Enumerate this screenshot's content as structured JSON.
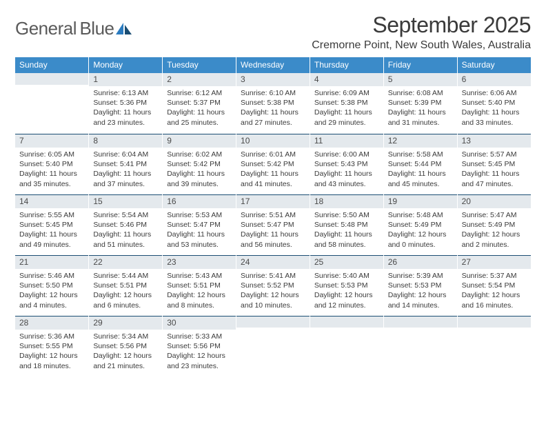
{
  "logo": {
    "text1": "General",
    "text2": "Blue"
  },
  "header": {
    "month_title": "September 2025",
    "location": "Cremorne Point, New South Wales, Australia"
  },
  "colors": {
    "header_bg": "#3b8bc9",
    "header_text": "#ffffff",
    "daybar_bg": "#e4e9ed",
    "daybar_border": "#1a4d73",
    "body_text": "#3a3a3a",
    "logo_gray": "#5a5a5a",
    "logo_blue": "#2b7bbf"
  },
  "day_headers": [
    "Sunday",
    "Monday",
    "Tuesday",
    "Wednesday",
    "Thursday",
    "Friday",
    "Saturday"
  ],
  "weeks": [
    [
      {
        "n": "",
        "lines": []
      },
      {
        "n": "1",
        "lines": [
          "Sunrise: 6:13 AM",
          "Sunset: 5:36 PM",
          "Daylight: 11 hours and 23 minutes."
        ]
      },
      {
        "n": "2",
        "lines": [
          "Sunrise: 6:12 AM",
          "Sunset: 5:37 PM",
          "Daylight: 11 hours and 25 minutes."
        ]
      },
      {
        "n": "3",
        "lines": [
          "Sunrise: 6:10 AM",
          "Sunset: 5:38 PM",
          "Daylight: 11 hours and 27 minutes."
        ]
      },
      {
        "n": "4",
        "lines": [
          "Sunrise: 6:09 AM",
          "Sunset: 5:38 PM",
          "Daylight: 11 hours and 29 minutes."
        ]
      },
      {
        "n": "5",
        "lines": [
          "Sunrise: 6:08 AM",
          "Sunset: 5:39 PM",
          "Daylight: 11 hours and 31 minutes."
        ]
      },
      {
        "n": "6",
        "lines": [
          "Sunrise: 6:06 AM",
          "Sunset: 5:40 PM",
          "Daylight: 11 hours and 33 minutes."
        ]
      }
    ],
    [
      {
        "n": "7",
        "lines": [
          "Sunrise: 6:05 AM",
          "Sunset: 5:40 PM",
          "Daylight: 11 hours and 35 minutes."
        ]
      },
      {
        "n": "8",
        "lines": [
          "Sunrise: 6:04 AM",
          "Sunset: 5:41 PM",
          "Daylight: 11 hours and 37 minutes."
        ]
      },
      {
        "n": "9",
        "lines": [
          "Sunrise: 6:02 AM",
          "Sunset: 5:42 PM",
          "Daylight: 11 hours and 39 minutes."
        ]
      },
      {
        "n": "10",
        "lines": [
          "Sunrise: 6:01 AM",
          "Sunset: 5:42 PM",
          "Daylight: 11 hours and 41 minutes."
        ]
      },
      {
        "n": "11",
        "lines": [
          "Sunrise: 6:00 AM",
          "Sunset: 5:43 PM",
          "Daylight: 11 hours and 43 minutes."
        ]
      },
      {
        "n": "12",
        "lines": [
          "Sunrise: 5:58 AM",
          "Sunset: 5:44 PM",
          "Daylight: 11 hours and 45 minutes."
        ]
      },
      {
        "n": "13",
        "lines": [
          "Sunrise: 5:57 AM",
          "Sunset: 5:45 PM",
          "Daylight: 11 hours and 47 minutes."
        ]
      }
    ],
    [
      {
        "n": "14",
        "lines": [
          "Sunrise: 5:55 AM",
          "Sunset: 5:45 PM",
          "Daylight: 11 hours and 49 minutes."
        ]
      },
      {
        "n": "15",
        "lines": [
          "Sunrise: 5:54 AM",
          "Sunset: 5:46 PM",
          "Daylight: 11 hours and 51 minutes."
        ]
      },
      {
        "n": "16",
        "lines": [
          "Sunrise: 5:53 AM",
          "Sunset: 5:47 PM",
          "Daylight: 11 hours and 53 minutes."
        ]
      },
      {
        "n": "17",
        "lines": [
          "Sunrise: 5:51 AM",
          "Sunset: 5:47 PM",
          "Daylight: 11 hours and 56 minutes."
        ]
      },
      {
        "n": "18",
        "lines": [
          "Sunrise: 5:50 AM",
          "Sunset: 5:48 PM",
          "Daylight: 11 hours and 58 minutes."
        ]
      },
      {
        "n": "19",
        "lines": [
          "Sunrise: 5:48 AM",
          "Sunset: 5:49 PM",
          "Daylight: 12 hours and 0 minutes."
        ]
      },
      {
        "n": "20",
        "lines": [
          "Sunrise: 5:47 AM",
          "Sunset: 5:49 PM",
          "Daylight: 12 hours and 2 minutes."
        ]
      }
    ],
    [
      {
        "n": "21",
        "lines": [
          "Sunrise: 5:46 AM",
          "Sunset: 5:50 PM",
          "Daylight: 12 hours and 4 minutes."
        ]
      },
      {
        "n": "22",
        "lines": [
          "Sunrise: 5:44 AM",
          "Sunset: 5:51 PM",
          "Daylight: 12 hours and 6 minutes."
        ]
      },
      {
        "n": "23",
        "lines": [
          "Sunrise: 5:43 AM",
          "Sunset: 5:51 PM",
          "Daylight: 12 hours and 8 minutes."
        ]
      },
      {
        "n": "24",
        "lines": [
          "Sunrise: 5:41 AM",
          "Sunset: 5:52 PM",
          "Daylight: 12 hours and 10 minutes."
        ]
      },
      {
        "n": "25",
        "lines": [
          "Sunrise: 5:40 AM",
          "Sunset: 5:53 PM",
          "Daylight: 12 hours and 12 minutes."
        ]
      },
      {
        "n": "26",
        "lines": [
          "Sunrise: 5:39 AM",
          "Sunset: 5:53 PM",
          "Daylight: 12 hours and 14 minutes."
        ]
      },
      {
        "n": "27",
        "lines": [
          "Sunrise: 5:37 AM",
          "Sunset: 5:54 PM",
          "Daylight: 12 hours and 16 minutes."
        ]
      }
    ],
    [
      {
        "n": "28",
        "lines": [
          "Sunrise: 5:36 AM",
          "Sunset: 5:55 PM",
          "Daylight: 12 hours and 18 minutes."
        ]
      },
      {
        "n": "29",
        "lines": [
          "Sunrise: 5:34 AM",
          "Sunset: 5:56 PM",
          "Daylight: 12 hours and 21 minutes."
        ]
      },
      {
        "n": "30",
        "lines": [
          "Sunrise: 5:33 AM",
          "Sunset: 5:56 PM",
          "Daylight: 12 hours and 23 minutes."
        ]
      },
      {
        "n": "",
        "lines": []
      },
      {
        "n": "",
        "lines": []
      },
      {
        "n": "",
        "lines": []
      },
      {
        "n": "",
        "lines": []
      }
    ]
  ]
}
